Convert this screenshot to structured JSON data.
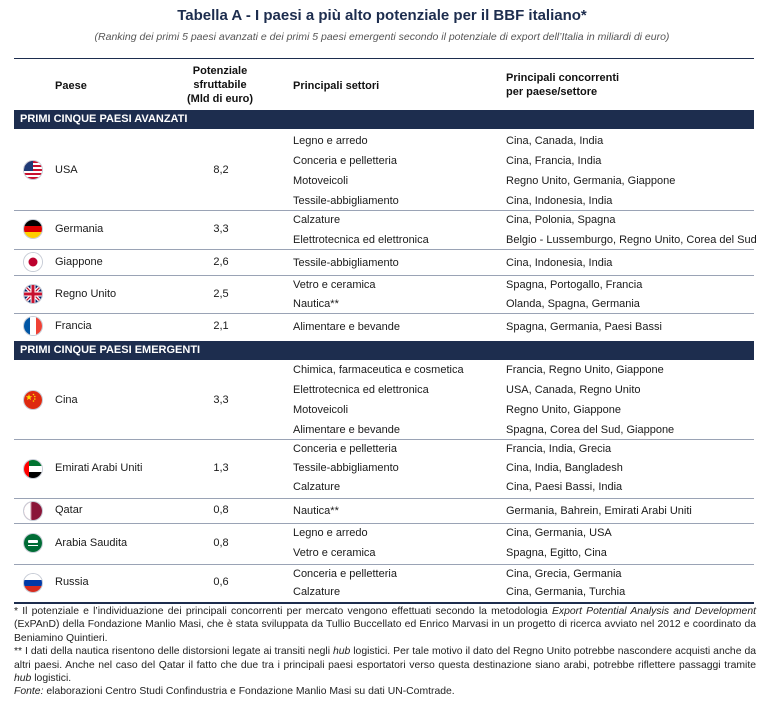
{
  "title": "Tabella A - I paesi a più alto potenziale per il BBF italiano*",
  "subtitle": "(Ranking dei primi 5 paesi avanzati e dei primi 5 paesi emergenti secondo il potenziale di export dell’Italia in miliardi di euro)",
  "headers": {
    "paese": "Paese",
    "potenziale_1": "Potenziale",
    "potenziale_2": "sfruttabile",
    "potenziale_3": "(Mld di euro)",
    "settori": "Principali settori",
    "concorrenti_1": "Principali concorrenti",
    "concorrenti_2": "per paese/settore"
  },
  "sections": [
    {
      "label": "PRIMI CINQUE PAESI AVANZATI",
      "rows": [
        {
          "flag": "usa-flag-icon",
          "country": "USA",
          "value": "8,2",
          "sectors": [
            "Legno e arredo",
            "Conceria e pelletteria",
            "Motoveicoli",
            "Tessile-abbigliamento"
          ],
          "competitors": [
            "Cina, Canada, India",
            "Cina, Francia, India",
            "Regno Unito, Germania, Giappone",
            "Cina,  Indonesia, India"
          ]
        },
        {
          "flag": "germany-flag-icon",
          "country": "Germania",
          "value": "3,3",
          "sectors": [
            "Calzature",
            "Elettrotecnica ed elettronica"
          ],
          "competitors": [
            "Cina, Polonia, Spagna",
            "Belgio - Lussemburgo, Regno Unito, Corea del Sud"
          ]
        },
        {
          "flag": "japan-flag-icon",
          "country": "Giappone",
          "value": "2,6",
          "sectors": [
            "Tessile-abbigliamento"
          ],
          "competitors": [
            "Cina, Indonesia, India"
          ]
        },
        {
          "flag": "uk-flag-icon",
          "country": "Regno Unito",
          "value": "2,5",
          "sectors": [
            "Vetro e ceramica",
            "Nautica**"
          ],
          "competitors": [
            "Spagna, Portogallo, Francia",
            "Olanda, Spagna, Germania"
          ]
        },
        {
          "flag": "france-flag-icon",
          "country": "Francia",
          "value": "2,1",
          "sectors": [
            "Alimentare e bevande"
          ],
          "competitors": [
            "Spagna, Germania, Paesi Bassi"
          ]
        }
      ]
    },
    {
      "label": "PRIMI CINQUE PAESI EMERGENTI",
      "rows": [
        {
          "flag": "china-flag-icon",
          "country": "Cina",
          "value": "3,3",
          "sectors": [
            "Chimica, farmaceutica e cosmetica",
            "Elettrotecnica ed elettronica",
            "Motoveicoli",
            "Alimentare e bevande"
          ],
          "competitors": [
            "Francia, Regno Unito, Giappone",
            "USA, Canada, Regno Unito",
            "Regno Unito, Giappone",
            "Spagna, Corea del Sud, Giappone"
          ]
        },
        {
          "flag": "uae-flag-icon",
          "country": "Emirati Arabi Uniti",
          "value": "1,3",
          "sectors": [
            "Conceria e pelletteria",
            "Tessile-abbigliamento",
            "Calzature"
          ],
          "competitors": [
            "Francia, India, Grecia",
            "Cina, India, Bangladesh",
            "Cina, Paesi Bassi, India"
          ]
        },
        {
          "flag": "qatar-flag-icon",
          "country": "Qatar",
          "value": "0,8",
          "sectors": [
            "Nautica**"
          ],
          "competitors": [
            "Germania, Bahrein, Emirati Arabi Uniti"
          ]
        },
        {
          "flag": "saudi-flag-icon",
          "country": "Arabia Saudita",
          "value": "0,8",
          "sectors": [
            "Legno e arredo",
            "Vetro e ceramica"
          ],
          "competitors": [
            "Cina, Germania, USA",
            "Spagna, Egitto, Cina"
          ]
        },
        {
          "flag": "russia-flag-icon",
          "country": "Russia",
          "value": "0,6",
          "sectors": [
            "Conceria e pelletteria",
            "Calzature"
          ],
          "competitors": [
            "Cina, Grecia, Germania",
            "Cina, Germania, Turchia"
          ]
        }
      ]
    }
  ],
  "notes": {
    "n1_a": "* Il potenziale e l’individuazione dei principali concorrenti per mercato vengono effettuati secondo la metodologia ",
    "n1_em": "Export Potential Analysis and Development",
    "n1_b": " (ExPAnD) della Fondazione Manlio Masi, che è stata sviluppata da Tullio Buccellato ed Enrico Marvasi in un progetto di ricerca avviato nel 2012 e coordinato da Beniamino Quintieri.",
    "n2_a": "** I dati della nautica risentono delle distorsioni legate ai transiti negli ",
    "n2_em1": "hub",
    "n2_b": " logistici. Per tale motivo il dato del Regno Unito potrebbe nascondere acquisti anche da altri paesi. Anche nel caso del Qatar il fatto che due tra i principali paesi esportatori verso questa destinazione siano arabi, potrebbe riflettere passaggi tramite ",
    "n2_em2": "hub",
    "n2_c": " logistici.",
    "fonte_label": "Fonte:",
    "fonte_text": " elaborazioni Centro Studi Confindustria e Fondazione Manlio Masi su dati UN-Comtrade."
  },
  "colors": {
    "navy": "#1d2d4e",
    "row_divider": "#9aa3b5"
  }
}
